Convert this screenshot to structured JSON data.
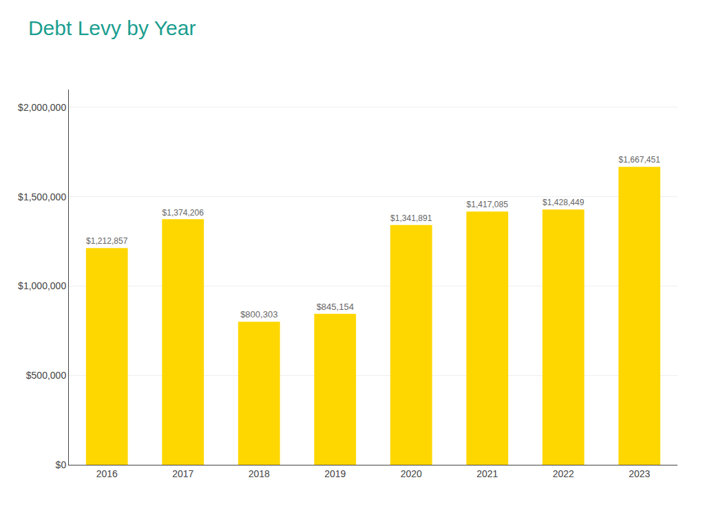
{
  "chart_data": {
    "type": "bar",
    "title": "Debt Levy by Year",
    "categories": [
      "2016",
      "2017",
      "2018",
      "2019",
      "2020",
      "2021",
      "2022",
      "2023"
    ],
    "values": [
      1212857,
      1374206,
      800303,
      845154,
      1341891,
      1417085,
      1428449,
      1667451
    ],
    "value_labels": [
      "$1,212,857",
      "$1,374,206",
      "$800,303",
      "$845,154",
      "$1,341,891",
      "$1,417,085",
      "$1,428,449",
      "$1,667,451"
    ],
    "color": "#FFD700",
    "ylim": [
      0,
      2100000
    ],
    "yticks": [
      {
        "value": 0,
        "label": "$0"
      },
      {
        "value": 500000,
        "label": "$500,000"
      },
      {
        "value": 1000000,
        "label": "$1,000,000"
      },
      {
        "value": 1500000,
        "label": "$1,500,000"
      },
      {
        "value": 2000000,
        "label": "$2,000,000"
      }
    ],
    "grid": true,
    "data_labels": true
  }
}
